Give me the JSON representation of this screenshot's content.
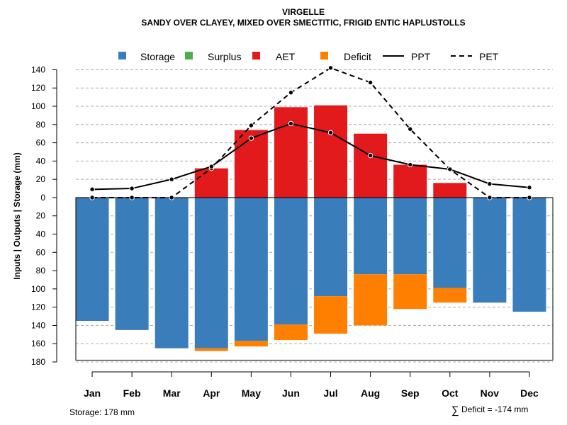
{
  "chart_data": {
    "type": "bar",
    "title": "VIRGELLE",
    "subtitle": "SANDY OVER CLAYEY, MIXED OVER SMECTITIC, FRIGID ENTIC HAPLUSTOLLS",
    "ylabel": "Inputs | Outputs | Storage    (mm)",
    "ylim": [
      -180,
      145
    ],
    "yticks": [
      140,
      120,
      100,
      80,
      60,
      40,
      20,
      0,
      -20,
      -40,
      -60,
      -80,
      -100,
      -120,
      -140,
      -160,
      -180
    ],
    "ytick_labels": [
      "140",
      "120",
      "100",
      "80",
      "60",
      "40",
      "20",
      "0",
      "20",
      "40",
      "60",
      "80",
      "100",
      "120",
      "140",
      "160",
      "180"
    ],
    "categories": [
      "Jan",
      "Feb",
      "Mar",
      "Apr",
      "May",
      "Jun",
      "Jul",
      "Aug",
      "Sep",
      "Oct",
      "Nov",
      "Dec"
    ],
    "legend": [
      "Storage",
      "Surplus",
      "AET",
      "Deficit",
      "PPT",
      "PET"
    ],
    "colors": {
      "storage": "#3a7dbb",
      "surplus": "#4daf4a",
      "aet": "#e31a1c",
      "deficit": "#ff7f00"
    },
    "series": [
      {
        "name": "Storage",
        "values": [
          -135,
          -145,
          -165,
          -165,
          -157,
          -139,
          -108,
          -84,
          -84,
          -99,
          -115,
          -125
        ]
      },
      {
        "name": "Deficit",
        "values": [
          0,
          0,
          0,
          -3,
          -6,
          -17,
          -41,
          -56,
          -38,
          -16,
          0,
          0
        ]
      },
      {
        "name": "Surplus",
        "values": [
          0,
          0,
          0,
          0,
          0,
          0,
          0,
          0,
          0,
          0,
          0,
          0
        ]
      },
      {
        "name": "AET",
        "values": [
          0,
          0,
          0,
          32,
          74,
          99,
          101,
          70,
          36,
          16,
          0,
          0
        ]
      },
      {
        "name": "PPT",
        "values": [
          9,
          10,
          20,
          34,
          65,
          81,
          71,
          46,
          36,
          31,
          15,
          11
        ]
      },
      {
        "name": "PET",
        "values": [
          0,
          0,
          0,
          32,
          79,
          115,
          142,
          126,
          75,
          31,
          0,
          0
        ]
      }
    ],
    "annotations": {
      "storage": "Storage: 178 mm",
      "deficit": "Deficit = -174 mm",
      "deficit_symbol": "∑"
    }
  }
}
